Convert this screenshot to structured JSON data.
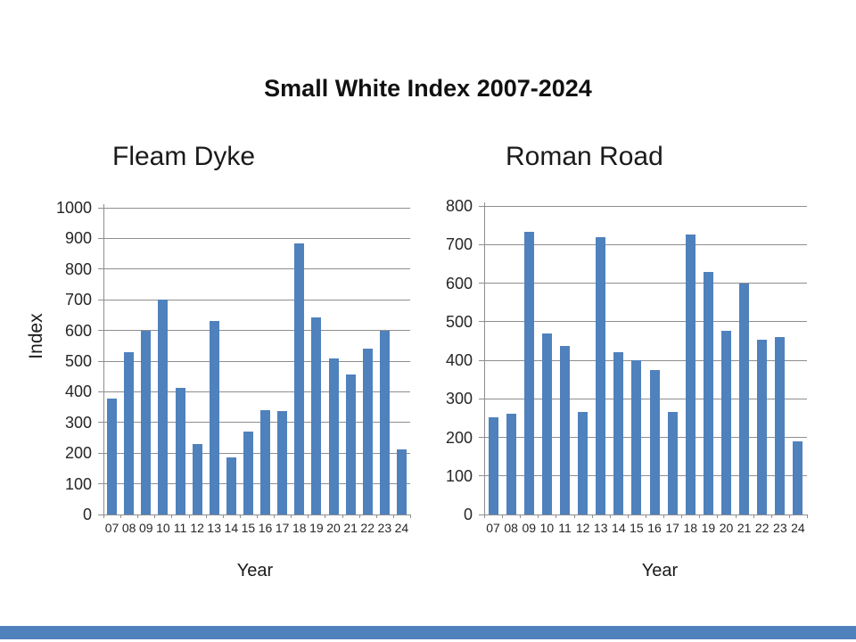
{
  "title": "Small White Index 2007-2024",
  "colors": {
    "bar": "#4f81bd",
    "grid": "#8e8e8e",
    "text": "#262626",
    "footer_bar": "#4f81bd"
  },
  "chart_data": [
    {
      "type": "bar",
      "title": "Fleam Dyke",
      "xlabel": "Year",
      "ylabel": "Index",
      "categories": [
        "07",
        "08",
        "09",
        "10",
        "11",
        "12",
        "13",
        "14",
        "15",
        "16",
        "17",
        "18",
        "19",
        "20",
        "21",
        "22",
        "23",
        "24"
      ],
      "values": [
        378,
        530,
        600,
        700,
        413,
        230,
        630,
        185,
        270,
        340,
        337,
        885,
        643,
        510,
        456,
        541,
        600,
        213
      ],
      "ylim": [
        0,
        1000
      ],
      "ytick_step": 100,
      "grid": true,
      "legend": false
    },
    {
      "type": "bar",
      "title": "Roman Road",
      "xlabel": "Year",
      "ylabel": "",
      "categories": [
        "07",
        "08",
        "09",
        "10",
        "11",
        "12",
        "13",
        "14",
        "15",
        "16",
        "17",
        "18",
        "19",
        "20",
        "21",
        "22",
        "23",
        "24"
      ],
      "values": [
        252,
        261,
        733,
        469,
        437,
        267,
        719,
        420,
        400,
        374,
        265,
        726,
        628,
        476,
        599,
        453,
        459,
        190
      ],
      "ylim": [
        0,
        800
      ],
      "ytick_step": 100,
      "grid": true,
      "legend": false
    }
  ]
}
